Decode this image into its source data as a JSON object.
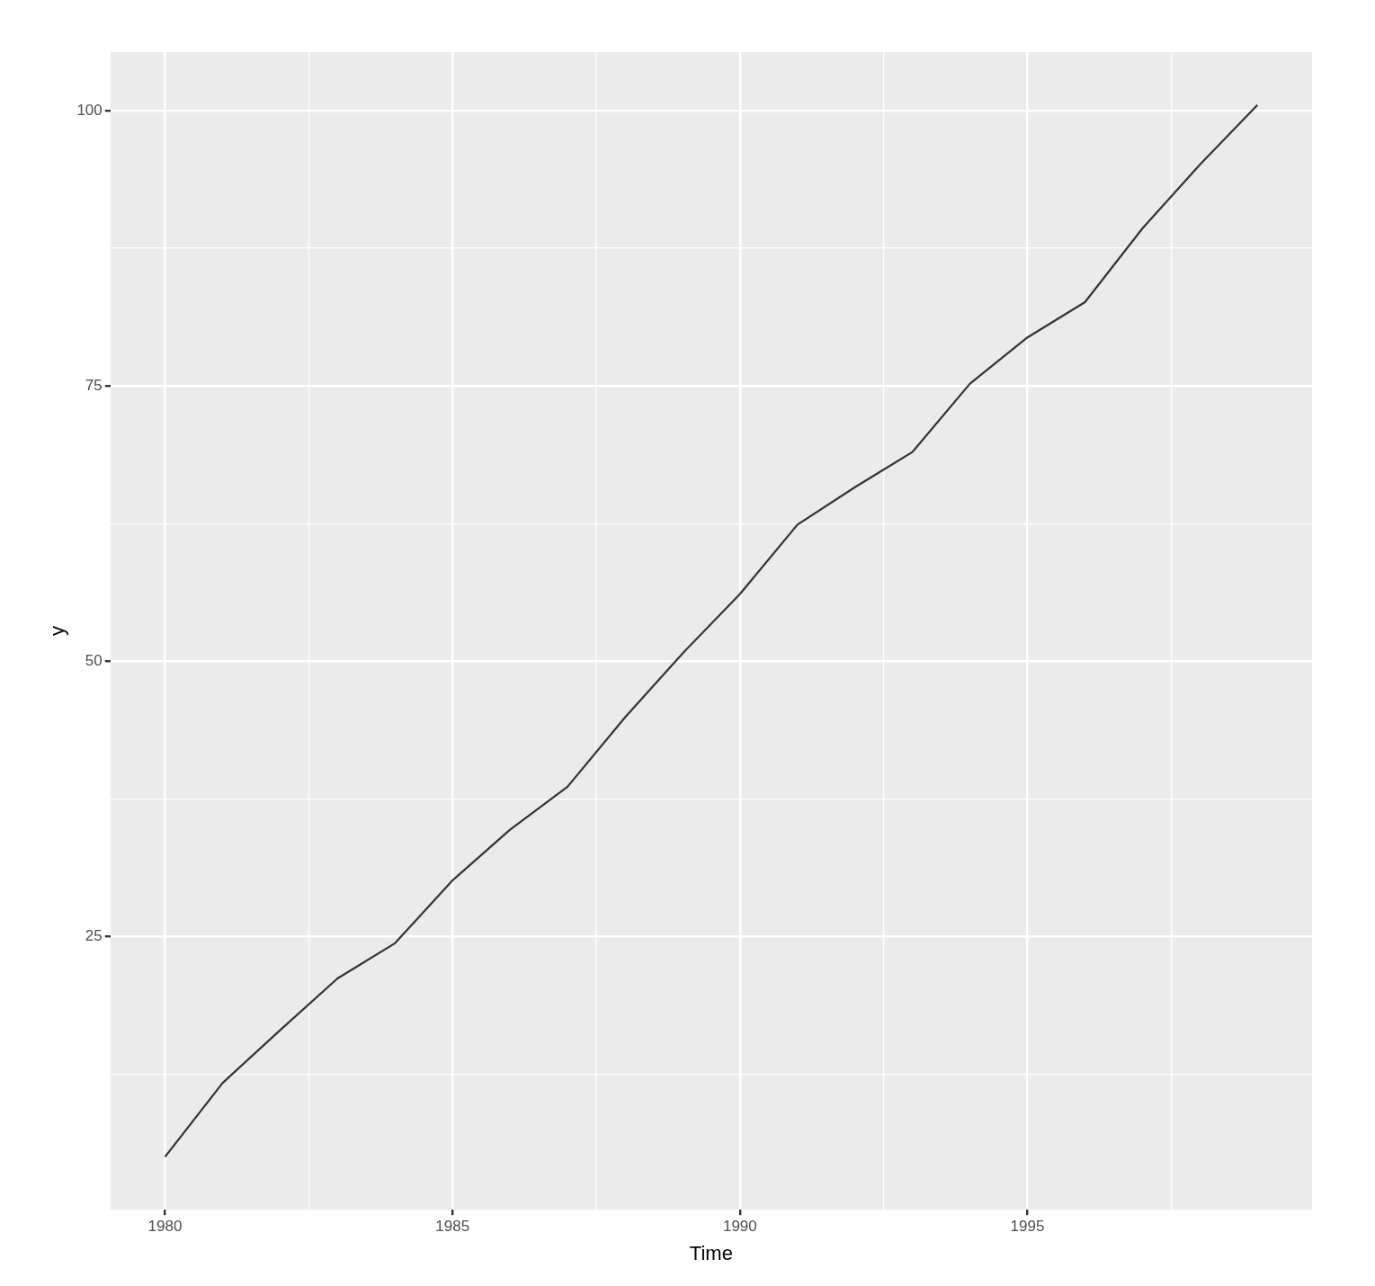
{
  "chart_data": {
    "type": "line",
    "xlabel": "Time",
    "ylabel": "y",
    "x": [
      1980,
      1981,
      1982,
      1983,
      1984,
      1985,
      1986,
      1987,
      1988,
      1989,
      1990,
      1991,
      1992,
      1993,
      1994,
      1995,
      1996,
      1997,
      1998,
      1999
    ],
    "values": [
      5.0,
      11.7,
      16.5,
      21.2,
      24.4,
      30.1,
      34.7,
      38.6,
      44.9,
      50.7,
      56.1,
      62.4,
      65.8,
      69.0,
      75.2,
      79.4,
      82.6,
      89.3,
      95.1,
      100.5
    ],
    "color": "#333333",
    "xlim": [
      1979.05,
      1999.95
    ],
    "ylim": [
      0.2,
      105.3
    ],
    "xticks": [
      1980,
      {
        "value": 1982.5,
        "label": null
      },
      1985,
      {
        "value": 1987.5,
        "label": null
      },
      1990,
      {
        "value": 1992.5,
        "label": null
      },
      1995,
      {
        "value": 1997.5,
        "label": null
      }
    ],
    "yticks": [
      {
        "value": 12.5,
        "label": null
      },
      25,
      {
        "value": 37.5,
        "label": null
      },
      50,
      {
        "value": 62.5,
        "label": null
      },
      75,
      {
        "value": 87.5,
        "label": null
      },
      100
    ],
    "grid": true
  }
}
